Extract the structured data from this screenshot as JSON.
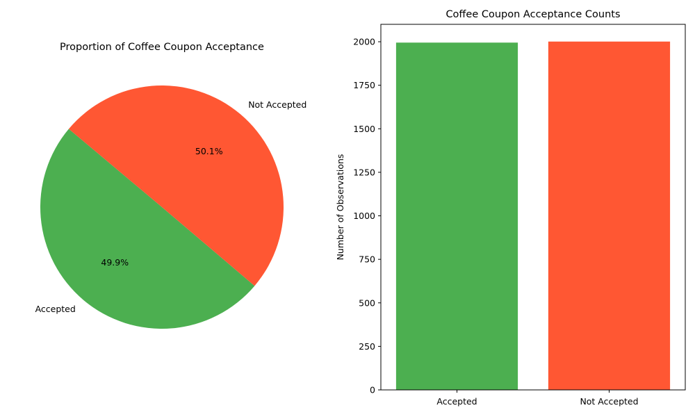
{
  "chart_data": [
    {
      "type": "pie",
      "title": "Proportion of Coffee Coupon Acceptance",
      "labels": [
        "Accepted",
        "Not Accepted"
      ],
      "values": [
        49.9,
        50.1
      ],
      "value_labels": [
        "49.9%",
        "50.1%"
      ],
      "colors": [
        "#4caf50",
        "#ff5733"
      ]
    },
    {
      "type": "bar",
      "title": "Coffee Coupon Acceptance Counts",
      "categories": [
        "Accepted",
        "Not Accepted"
      ],
      "values": [
        1995,
        2001
      ],
      "colors": [
        "#4caf50",
        "#ff5733"
      ],
      "xlabel": "",
      "ylabel": "Number of Observations",
      "ylim": [
        0,
        2100
      ],
      "yticks": [
        "0",
        "250",
        "500",
        "750",
        "1000",
        "1250",
        "1500",
        "1750",
        "2000"
      ],
      "grid": false
    }
  ]
}
